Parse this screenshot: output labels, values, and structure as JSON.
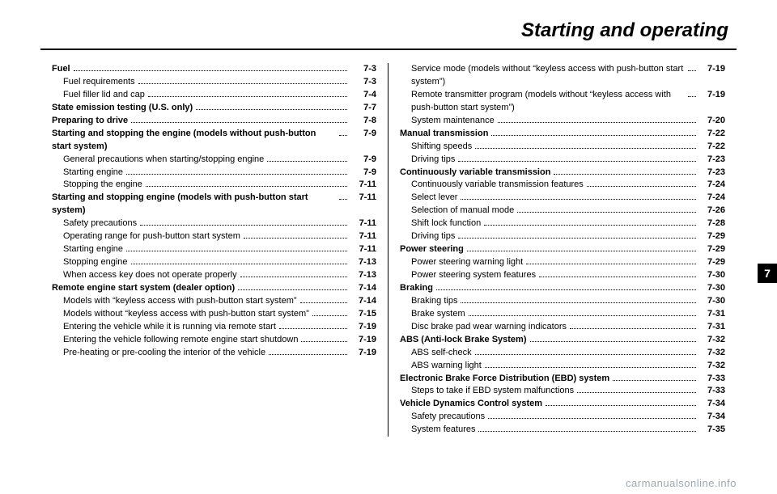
{
  "title": "Starting and operating",
  "chapter_tab": "7",
  "footer": "carmanualsonline.info",
  "left": [
    {
      "level": 0,
      "label": "Fuel",
      "page": "7-3"
    },
    {
      "level": 1,
      "label": "Fuel requirements",
      "page": "7-3"
    },
    {
      "level": 1,
      "label": "Fuel filler lid and cap",
      "page": "7-4"
    },
    {
      "level": 0,
      "label": "State emission testing (U.S. only)",
      "page": "7-7"
    },
    {
      "level": 0,
      "label": "Preparing to drive",
      "page": "7-8"
    },
    {
      "level": 0,
      "label": "Starting and stopping the engine (models without push-button start system)",
      "page": "7-9"
    },
    {
      "level": 1,
      "label": "General precautions when starting/stopping engine",
      "page": "7-9"
    },
    {
      "level": 1,
      "label": "Starting engine",
      "page": "7-9"
    },
    {
      "level": 1,
      "label": "Stopping the engine",
      "page": "7-11"
    },
    {
      "level": 0,
      "label": "Starting and stopping engine (models with push-button start system)",
      "page": "7-11"
    },
    {
      "level": 1,
      "label": "Safety precautions",
      "page": "7-11"
    },
    {
      "level": 1,
      "label": "Operating range for push-button start system",
      "page": "7-11"
    },
    {
      "level": 1,
      "label": "Starting engine",
      "page": "7-11"
    },
    {
      "level": 1,
      "label": "Stopping engine",
      "page": "7-13"
    },
    {
      "level": 1,
      "label": "When access key does not operate properly",
      "page": "7-13"
    },
    {
      "level": 0,
      "label": "Remote engine start system (dealer option)",
      "page": "7-14"
    },
    {
      "level": 1,
      "label": "Models with “keyless access with push-button start system”",
      "page": "7-14"
    },
    {
      "level": 1,
      "label": "Models without “keyless access with push-button start system”",
      "page": "7-15"
    },
    {
      "level": 1,
      "label": "Entering the vehicle while it is running via remote start",
      "page": "7-19"
    },
    {
      "level": 1,
      "label": "Entering the vehicle following remote engine start shutdown",
      "page": "7-19"
    },
    {
      "level": 1,
      "label": "Pre-heating or pre-cooling the interior of the vehicle",
      "page": "7-19"
    }
  ],
  "right": [
    {
      "level": 1,
      "label": "Service mode (models without “keyless access with push-button start system”)",
      "page": "7-19"
    },
    {
      "level": 1,
      "label": "Remote transmitter program (models without “keyless access with push-button start system”)",
      "page": "7-19"
    },
    {
      "level": 1,
      "label": "System maintenance",
      "page": "7-20"
    },
    {
      "level": 0,
      "label": "Manual transmission",
      "page": "7-22"
    },
    {
      "level": 1,
      "label": "Shifting speeds",
      "page": "7-22"
    },
    {
      "level": 1,
      "label": "Driving tips",
      "page": "7-23"
    },
    {
      "level": 0,
      "label": "Continuously variable transmission",
      "page": "7-23"
    },
    {
      "level": 1,
      "label": "Continuously variable transmission features",
      "page": "7-24"
    },
    {
      "level": 1,
      "label": "Select lever",
      "page": "7-24"
    },
    {
      "level": 1,
      "label": "Selection of manual mode",
      "page": "7-26"
    },
    {
      "level": 1,
      "label": "Shift lock function",
      "page": "7-28"
    },
    {
      "level": 1,
      "label": "Driving tips",
      "page": "7-29"
    },
    {
      "level": 0,
      "label": "Power steering",
      "page": "7-29"
    },
    {
      "level": 1,
      "label": "Power steering warning light",
      "page": "7-29"
    },
    {
      "level": 1,
      "label": "Power steering system features",
      "page": "7-30"
    },
    {
      "level": 0,
      "label": "Braking",
      "page": "7-30"
    },
    {
      "level": 1,
      "label": "Braking tips",
      "page": "7-30"
    },
    {
      "level": 1,
      "label": "Brake system",
      "page": "7-31"
    },
    {
      "level": 1,
      "label": "Disc brake pad wear warning indicators",
      "page": "7-31"
    },
    {
      "level": 0,
      "label": "ABS (Anti-lock Brake System)",
      "page": "7-32"
    },
    {
      "level": 1,
      "label": "ABS self-check",
      "page": "7-32"
    },
    {
      "level": 1,
      "label": "ABS warning light",
      "page": "7-32"
    },
    {
      "level": 0,
      "label": "Electronic Brake Force Distribution (EBD) system",
      "page": "7-33"
    },
    {
      "level": 1,
      "label": "Steps to take if EBD system malfunctions",
      "page": "7-33"
    },
    {
      "level": 0,
      "label": "Vehicle Dynamics Control system",
      "page": "7-34"
    },
    {
      "level": 1,
      "label": "Safety precautions",
      "page": "7-34"
    },
    {
      "level": 1,
      "label": "System features",
      "page": "7-35"
    }
  ]
}
